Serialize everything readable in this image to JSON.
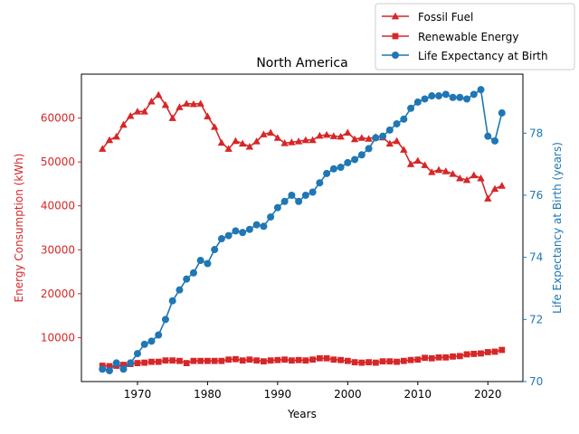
{
  "chart_data": {
    "type": "line",
    "title": "North America",
    "xlabel": "Years",
    "ylabel_left": "Energy Consumption (kWh)",
    "ylabel_right": "Life Expectancy at Birth (years)",
    "xlim": [
      1962,
      2025
    ],
    "ylim_left": [
      0,
      70000
    ],
    "ylim_right": [
      70,
      79.9
    ],
    "x_ticks": [
      1970,
      1980,
      1990,
      2000,
      2010,
      2020
    ],
    "y_left_ticks": [
      10000,
      20000,
      30000,
      40000,
      50000,
      60000
    ],
    "y_right_ticks": [
      70,
      72,
      74,
      76,
      78
    ],
    "colors": {
      "left_axis": "#d62728",
      "right_axis": "#1f77b4"
    },
    "legend_position": "upper-right-outside",
    "grid": false,
    "x": [
      1965,
      1966,
      1967,
      1968,
      1969,
      1970,
      1971,
      1972,
      1973,
      1974,
      1975,
      1976,
      1977,
      1978,
      1979,
      1980,
      1981,
      1982,
      1983,
      1984,
      1985,
      1986,
      1987,
      1988,
      1989,
      1990,
      1991,
      1992,
      1993,
      1994,
      1995,
      1996,
      1997,
      1998,
      1999,
      2000,
      2001,
      2002,
      2003,
      2004,
      2005,
      2006,
      2007,
      2008,
      2009,
      2010,
      2011,
      2012,
      2013,
      2014,
      2015,
      2016,
      2017,
      2018,
      2019,
      2020,
      2021,
      2022
    ],
    "series": [
      {
        "name": "Fossil Fuel",
        "axis": "left",
        "color": "#d62728",
        "marker": "triangle",
        "values": [
          53000,
          55000,
          55800,
          58500,
          60500,
          61500,
          61500,
          63800,
          65300,
          63000,
          60000,
          62500,
          63300,
          63200,
          63300,
          60400,
          58000,
          54400,
          53000,
          54800,
          54200,
          53500,
          54700,
          56300,
          56700,
          55500,
          54300,
          54500,
          54700,
          55000,
          55000,
          56000,
          56200,
          55900,
          55800,
          56700,
          55200,
          55500,
          55300,
          55700,
          55600,
          54200,
          54800,
          52800,
          49500,
          50300,
          49300,
          47700,
          48200,
          47900,
          47300,
          46300,
          45900,
          47000,
          46300,
          41700,
          43900,
          44600
        ]
      },
      {
        "name": "Renewable Energy",
        "axis": "left",
        "color": "#d62728",
        "marker": "square",
        "values": [
          3600,
          3500,
          3600,
          3800,
          4000,
          4200,
          4300,
          4500,
          4500,
          4800,
          4800,
          4700,
          4200,
          4700,
          4700,
          4700,
          4700,
          4700,
          5000,
          5100,
          4800,
          5000,
          4800,
          4600,
          4800,
          4900,
          5000,
          4800,
          4900,
          4800,
          5000,
          5300,
          5300,
          5000,
          4900,
          4700,
          4400,
          4300,
          4400,
          4300,
          4600,
          4600,
          4500,
          4700,
          4900,
          5000,
          5400,
          5300,
          5500,
          5500,
          5700,
          5800,
          6200,
          6300,
          6400,
          6700,
          6800,
          7200
        ]
      },
      {
        "name": "Life Expectancy at Birth",
        "axis": "right",
        "color": "#1f77b4",
        "marker": "circle",
        "values": [
          70.4,
          70.35,
          70.6,
          70.4,
          70.6,
          70.9,
          71.2,
          71.3,
          71.5,
          72.0,
          72.6,
          72.95,
          73.3,
          73.5,
          73.9,
          73.8,
          74.25,
          74.6,
          74.7,
          74.85,
          74.8,
          74.9,
          75.05,
          75.0,
          75.3,
          75.6,
          75.8,
          76.0,
          75.8,
          76.0,
          76.1,
          76.4,
          76.7,
          76.85,
          76.9,
          77.05,
          77.15,
          77.3,
          77.5,
          77.85,
          77.9,
          78.1,
          78.3,
          78.45,
          78.8,
          79.0,
          79.1,
          79.2,
          79.2,
          79.25,
          79.15,
          79.15,
          79.1,
          79.25,
          79.4,
          77.9,
          77.75,
          78.65
        ]
      }
    ]
  }
}
